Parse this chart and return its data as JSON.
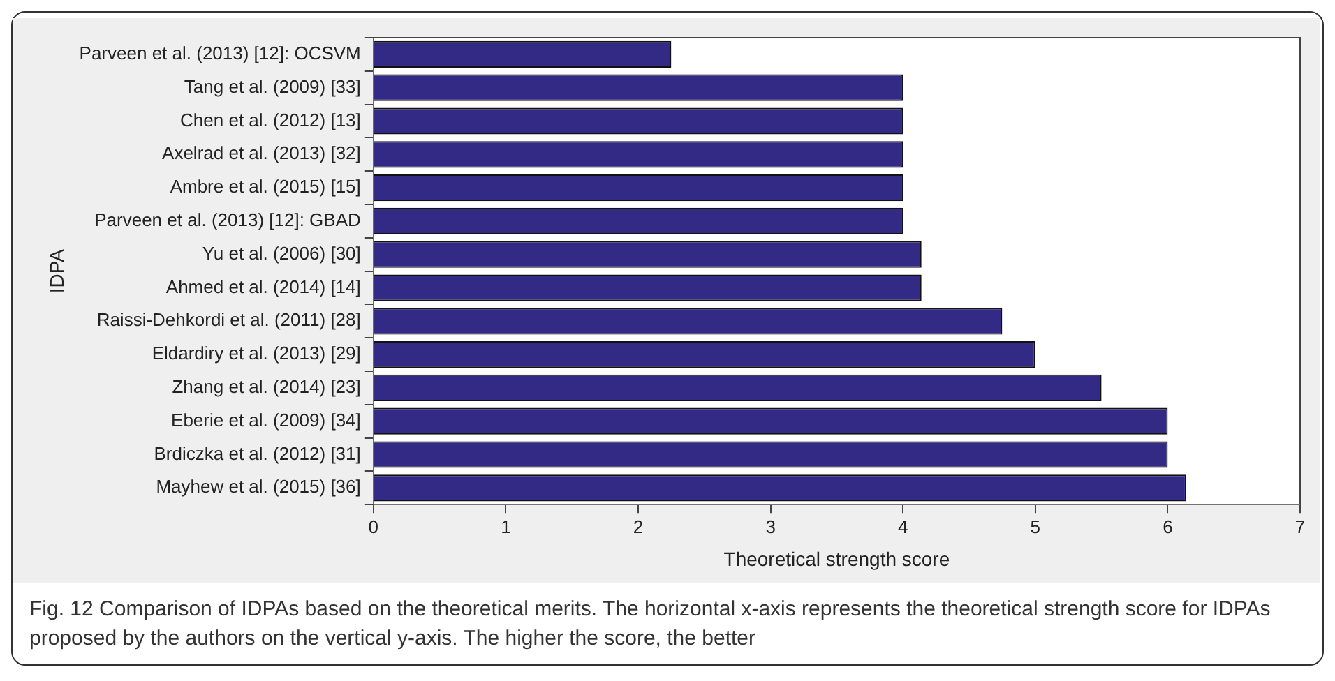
{
  "chart_data": {
    "type": "bar",
    "orientation": "horizontal",
    "xlabel": "Theoretical strength score",
    "ylabel": "IDPA",
    "categories": [
      "Parveen et al. (2013) [12]: OCSVM",
      "Tang et al. (2009) [33]",
      "Chen et al. (2012) [13]",
      "Axelrad et al. (2013) [32]",
      "Ambre et al. (2015) [15]",
      "Parveen et al. (2013) [12]: GBAD",
      "Yu et al. (2006) [30]",
      "Ahmed et al. (2014) [14]",
      "Raissi-Dehkordi et al. (2011) [28]",
      "Eldardiry et al. (2013) [29]",
      "Zhang et al. (2014) [23]",
      "Eberie et al. (2009) [34]",
      "Brdiczka et al. (2012) [31]",
      "Mayhew et al. (2015) [36]"
    ],
    "values": [
      2.25,
      4,
      4,
      4,
      4,
      4,
      4.14,
      4.14,
      4.75,
      5,
      5.5,
      6,
      6,
      6.14
    ],
    "color": "#332a86",
    "xlim": [
      0,
      7
    ],
    "xticks": [
      0,
      1,
      2,
      3,
      4,
      5,
      6,
      7
    ],
    "annotations": [
      "Fig. 12 Comparison of IDPAs based on the theoretical merits. The horizontal x-axis represents the theoretical strength score for IDPAs proposed by the authors on the vertical y-axis. The higher the score, the better"
    ]
  }
}
